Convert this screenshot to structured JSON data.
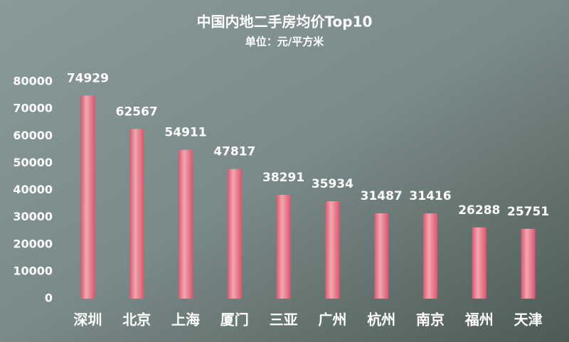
{
  "chart_data": {
    "type": "bar",
    "title": "中国内地二手房均价Top10",
    "subtitle": "单位：元/平方米",
    "categories": [
      "深圳",
      "北京",
      "上海",
      "厦门",
      "三亚",
      "广州",
      "杭州",
      "南京",
      "福州",
      "天津"
    ],
    "values": [
      74929,
      62567,
      54911,
      47817,
      38291,
      35934,
      31487,
      31416,
      26288,
      25751
    ],
    "color": "#d9576c",
    "ylim": [
      0,
      80000
    ],
    "yticks": [
      0,
      10000,
      20000,
      30000,
      40000,
      50000,
      60000,
      70000,
      80000
    ]
  }
}
